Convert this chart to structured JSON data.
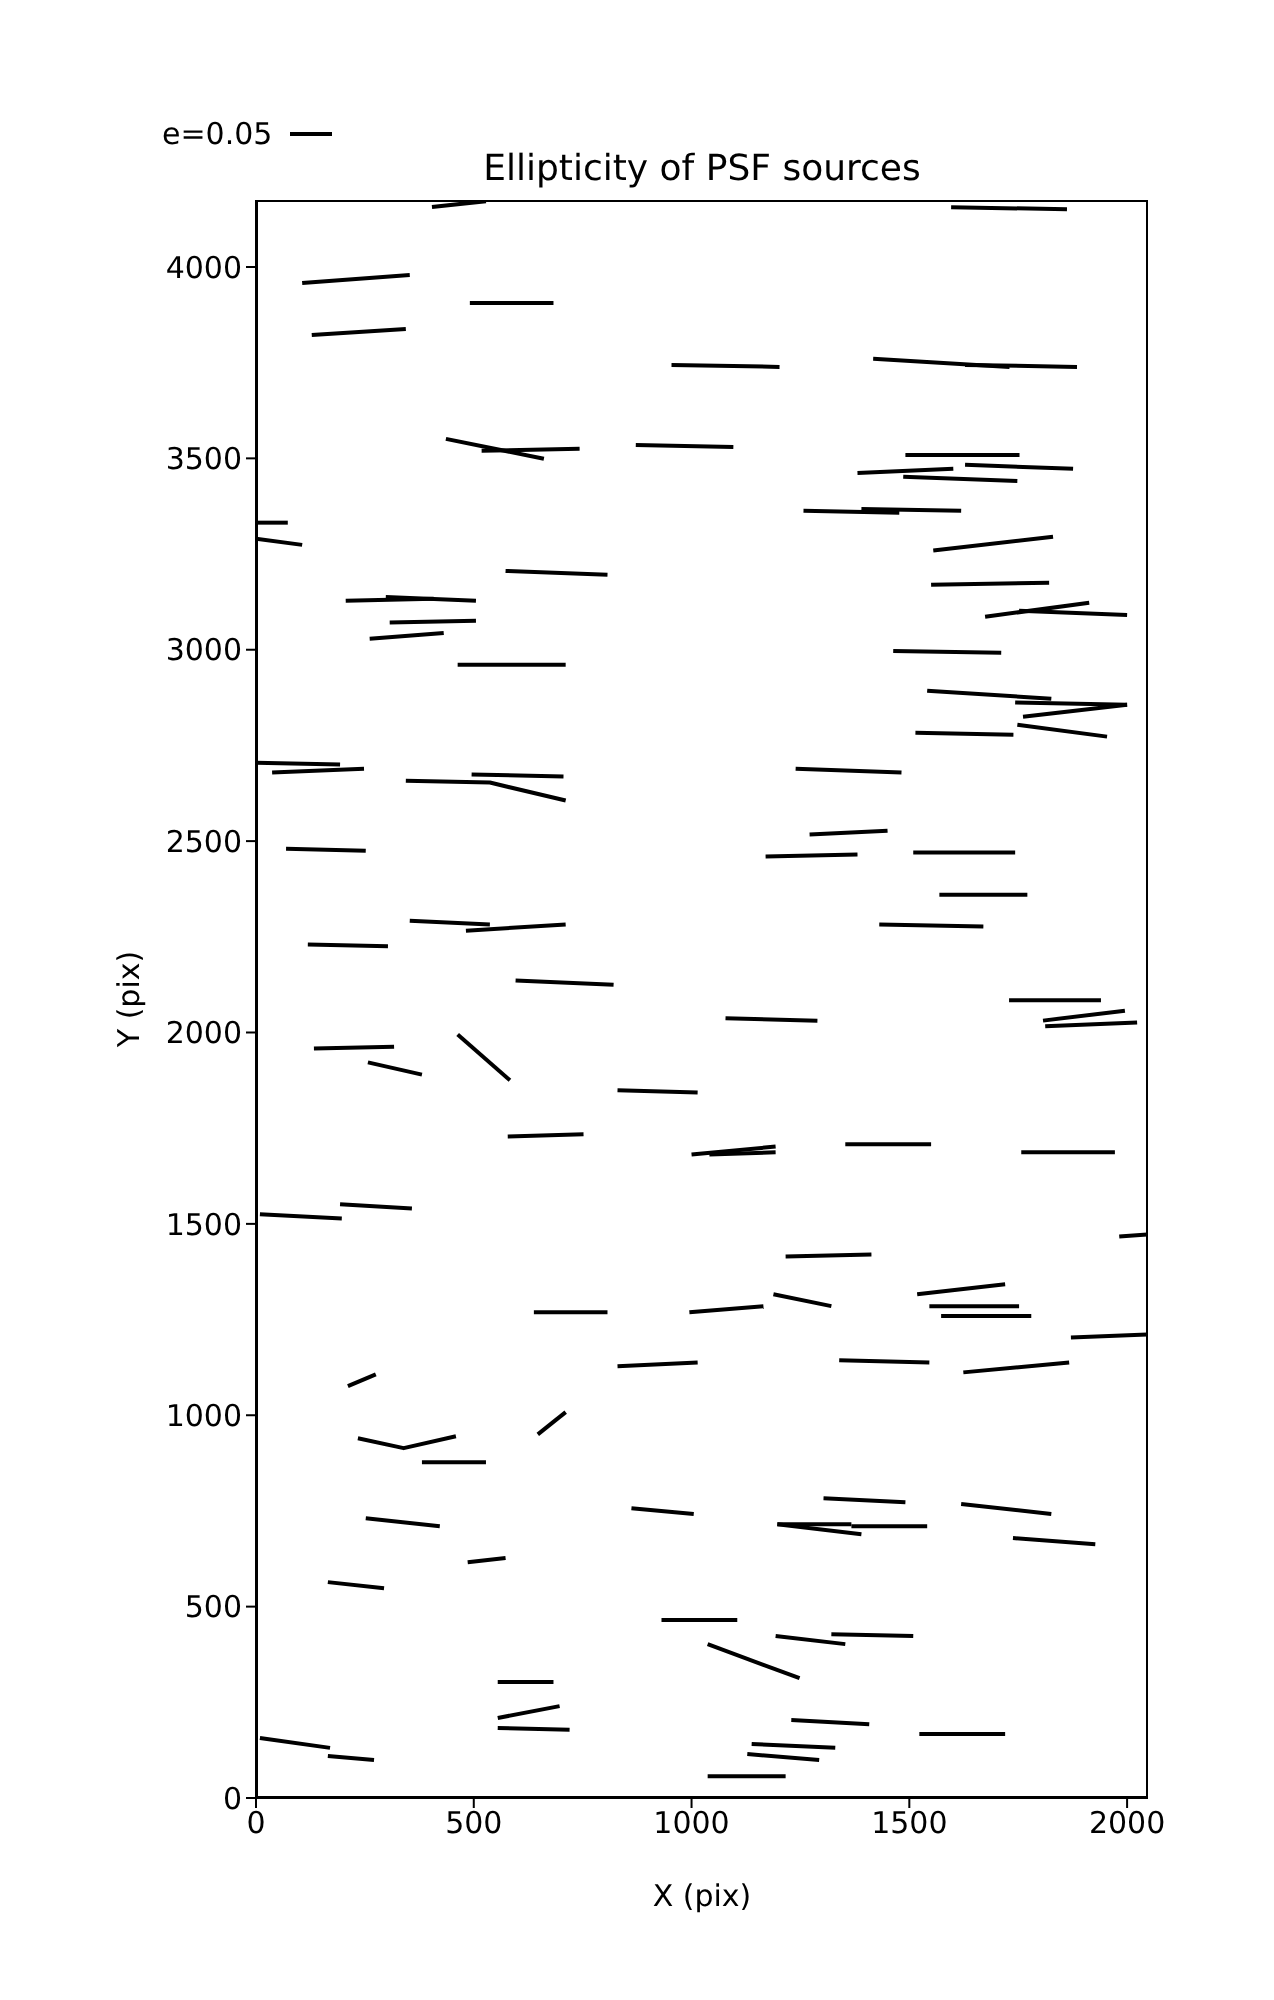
{
  "chart_data": {
    "type": "line",
    "title": "Ellipticity of PSF sources",
    "xlabel": "X (pix)",
    "ylabel": "Y (pix)",
    "annotations": [
      "e=0.05"
    ],
    "xlim": [
      0,
      2048
    ],
    "ylim": [
      0,
      4175
    ],
    "xticks": [
      0,
      500,
      1000,
      1500,
      2000
    ],
    "yticks": [
      0,
      500,
      1000,
      1500,
      2000,
      2500,
      3000,
      3500,
      4000
    ],
    "grid": false,
    "marker": "none",
    "line_style": "solid",
    "series": [
      {
        "color": "#000000",
        "x": [
          404,
          528
        ],
        "values": [
          4157,
          4172
        ]
      },
      {
        "color": "#000000",
        "x": [
          1596,
          1862
        ],
        "values": [
          4156,
          4151
        ]
      },
      {
        "color": "#000000",
        "x": [
          106,
          353
        ],
        "values": [
          3958,
          3979
        ]
      },
      {
        "color": "#000000",
        "x": [
          128,
          344
        ],
        "values": [
          3822,
          3838
        ]
      },
      {
        "color": "#000000",
        "x": [
          491,
          683
        ],
        "values": [
          3906,
          3906
        ]
      },
      {
        "color": "#000000",
        "x": [
          954,
          1202
        ],
        "values": [
          3744,
          3739
        ]
      },
      {
        "color": "#000000",
        "x": [
          1417,
          1730
        ],
        "values": [
          3760,
          3739
        ]
      },
      {
        "color": "#000000",
        "x": [
          1628,
          1885
        ],
        "values": [
          3744,
          3739
        ]
      },
      {
        "color": "#000000",
        "x": [
          436,
          661
        ],
        "values": [
          3551,
          3499
        ]
      },
      {
        "color": "#000000",
        "x": [
          518,
          743
        ],
        "values": [
          3520,
          3525
        ]
      },
      {
        "color": "#000000",
        "x": [
          872,
          1096
        ],
        "values": [
          3535,
          3530
        ]
      },
      {
        "color": "#000000",
        "x": [
          1491,
          1753
        ],
        "values": [
          3509,
          3509
        ]
      },
      {
        "color": "#000000",
        "x": [
          1628,
          1876
        ],
        "values": [
          3483,
          3473
        ]
      },
      {
        "color": "#000000",
        "x": [
          1381,
          1601
        ],
        "values": [
          3462,
          3473
        ]
      },
      {
        "color": "#000000",
        "x": [
          1486,
          1748
        ],
        "values": [
          3452,
          3441
        ]
      },
      {
        "color": "#000000",
        "x": [
          1257,
          1477
        ],
        "values": [
          3363,
          3358
        ]
      },
      {
        "color": "#000000",
        "x": [
          1390,
          1619
        ],
        "values": [
          3368,
          3363
        ]
      },
      {
        "color": "#000000",
        "x": [
          0,
          73
        ],
        "values": [
          3332,
          3332
        ]
      },
      {
        "color": "#000000",
        "x": [
          0,
          106
        ],
        "values": [
          3290,
          3274
        ]
      },
      {
        "color": "#000000",
        "x": [
          1555,
          1830
        ],
        "values": [
          3259,
          3295
        ]
      },
      {
        "color": "#000000",
        "x": [
          573,
          807
        ],
        "values": [
          3206,
          3196
        ]
      },
      {
        "color": "#000000",
        "x": [
          1550,
          1821
        ],
        "values": [
          3170,
          3175
        ]
      },
      {
        "color": "#000000",
        "x": [
          206,
          408
        ],
        "values": [
          3128,
          3133
        ]
      },
      {
        "color": "#000000",
        "x": [
          298,
          505
        ],
        "values": [
          3138,
          3128
        ]
      },
      {
        "color": "#000000",
        "x": [
          307,
          505
        ],
        "values": [
          3071,
          3076
        ]
      },
      {
        "color": "#000000",
        "x": [
          261,
          431
        ],
        "values": [
          3029,
          3044
        ]
      },
      {
        "color": "#000000",
        "x": [
          1674,
          1913
        ],
        "values": [
          3086,
          3123
        ]
      },
      {
        "color": "#000000",
        "x": [
          1752,
          2000
        ],
        "values": [
          3102,
          3091
        ]
      },
      {
        "color": "#000000",
        "x": [
          463,
          711
        ],
        "values": [
          2961,
          2961
        ]
      },
      {
        "color": "#000000",
        "x": [
          1463,
          1711
        ],
        "values": [
          2997,
          2992
        ]
      },
      {
        "color": "#000000",
        "x": [
          1541,
          1826
        ],
        "values": [
          2893,
          2872
        ]
      },
      {
        "color": "#000000",
        "x": [
          1743,
          2000
        ],
        "values": [
          2862,
          2856
        ]
      },
      {
        "color": "#000000",
        "x": [
          1761,
          2000
        ],
        "values": [
          2825,
          2856
        ]
      },
      {
        "color": "#000000",
        "x": [
          1514,
          1739
        ],
        "values": [
          2783,
          2778
        ]
      },
      {
        "color": "#000000",
        "x": [
          1748,
          1954
        ],
        "values": [
          2804,
          2773
        ]
      },
      {
        "color": "#000000",
        "x": [
          0,
          193
        ],
        "values": [
          2705,
          2700
        ]
      },
      {
        "color": "#000000",
        "x": [
          37,
          248
        ],
        "values": [
          2679,
          2689
        ]
      },
      {
        "color": "#000000",
        "x": [
          344,
          537,
          711
        ],
        "values": [
          2658,
          2653,
          2606
        ]
      },
      {
        "color": "#000000",
        "x": [
          495,
          706
        ],
        "values": [
          2674,
          2669
        ]
      },
      {
        "color": "#000000",
        "x": [
          1239,
          1482
        ],
        "values": [
          2689,
          2679
        ]
      },
      {
        "color": "#000000",
        "x": [
          1271,
          1450
        ],
        "values": [
          2517,
          2527
        ]
      },
      {
        "color": "#000000",
        "x": [
          69,
          252
        ],
        "values": [
          2480,
          2475
        ]
      },
      {
        "color": "#000000",
        "x": [
          1170,
          1381
        ],
        "values": [
          2460,
          2465
        ]
      },
      {
        "color": "#000000",
        "x": [
          1509,
          1743
        ],
        "values": [
          2470,
          2470
        ]
      },
      {
        "color": "#000000",
        "x": [
          1569,
          1771
        ],
        "values": [
          2360,
          2360
        ]
      },
      {
        "color": "#000000",
        "x": [
          353,
          537
        ],
        "values": [
          2292,
          2282
        ]
      },
      {
        "color": "#000000",
        "x": [
          482,
          711
        ],
        "values": [
          2266,
          2282
        ]
      },
      {
        "color": "#000000",
        "x": [
          119,
          303
        ],
        "values": [
          2230,
          2225
        ]
      },
      {
        "color": "#000000",
        "x": [
          1431,
          1670
        ],
        "values": [
          2282,
          2277
        ]
      },
      {
        "color": "#000000",
        "x": [
          596,
          821
        ],
        "values": [
          2136,
          2125
        ]
      },
      {
        "color": "#000000",
        "x": [
          1729,
          1940
        ],
        "values": [
          2084,
          2084
        ]
      },
      {
        "color": "#000000",
        "x": [
          1078,
          1289
        ],
        "values": [
          2037,
          2031
        ]
      },
      {
        "color": "#000000",
        "x": [
          1807,
          1995
        ],
        "values": [
          2031,
          2057
        ]
      },
      {
        "color": "#000000",
        "x": [
          1812,
          2023
        ],
        "values": [
          2016,
          2026
        ]
      },
      {
        "color": "#000000",
        "x": [
          133,
          317
        ],
        "values": [
          1958,
          1963
        ]
      },
      {
        "color": "#000000",
        "x": [
          257,
          381
        ],
        "values": [
          1922,
          1890
        ]
      },
      {
        "color": "#000000",
        "x": [
          463,
          583
        ],
        "values": [
          1995,
          1875
        ]
      },
      {
        "color": "#000000",
        "x": [
          830,
          1014
        ],
        "values": [
          1849,
          1843
        ]
      },
      {
        "color": "#000000",
        "x": [
          578,
          752
        ],
        "values": [
          1728,
          1734
        ]
      },
      {
        "color": "#000000",
        "x": [
          1000,
          1193
        ],
        "values": [
          1681,
          1702
        ]
      },
      {
        "color": "#000000",
        "x": [
          1041,
          1193
        ],
        "values": [
          1681,
          1687
        ]
      },
      {
        "color": "#000000",
        "x": [
          1353,
          1550
        ],
        "values": [
          1708,
          1708
        ]
      },
      {
        "color": "#000000",
        "x": [
          1757,
          1972
        ],
        "values": [
          1687,
          1687
        ]
      },
      {
        "color": "#000000",
        "x": [
          9,
          197
        ],
        "values": [
          1525,
          1514
        ]
      },
      {
        "color": "#000000",
        "x": [
          193,
          358
        ],
        "values": [
          1551,
          1540
        ]
      },
      {
        "color": "#000000",
        "x": [
          1982,
          2046
        ],
        "values": [
          1467,
          1472
        ]
      },
      {
        "color": "#000000",
        "x": [
          1216,
          1413
        ],
        "values": [
          1415,
          1420
        ]
      },
      {
        "color": "#000000",
        "x": [
          638,
          807
        ],
        "values": [
          1269,
          1269
        ]
      },
      {
        "color": "#000000",
        "x": [
          995,
          1165
        ],
        "values": [
          1269,
          1285
        ]
      },
      {
        "color": "#000000",
        "x": [
          1188,
          1321
        ],
        "values": [
          1316,
          1285
        ]
      },
      {
        "color": "#000000",
        "x": [
          1518,
          1720
        ],
        "values": [
          1316,
          1342
        ]
      },
      {
        "color": "#000000",
        "x": [
          1546,
          1752
        ],
        "values": [
          1285,
          1285
        ]
      },
      {
        "color": "#000000",
        "x": [
          1573,
          1780
        ],
        "values": [
          1259,
          1259
        ]
      },
      {
        "color": "#000000",
        "x": [
          1871,
          2046
        ],
        "values": [
          1203,
          1211
        ]
      },
      {
        "color": "#000000",
        "x": [
          830,
          1014
        ],
        "values": [
          1128,
          1138
        ]
      },
      {
        "color": "#000000",
        "x": [
          1339,
          1546
        ],
        "values": [
          1144,
          1138
        ]
      },
      {
        "color": "#000000",
        "x": [
          1624,
          1867
        ],
        "values": [
          1112,
          1138
        ]
      },
      {
        "color": "#000000",
        "x": [
          211,
          275
        ],
        "values": [
          1076,
          1107
        ]
      },
      {
        "color": "#000000",
        "x": [
          647,
          711
        ],
        "values": [
          950,
          1008
        ]
      },
      {
        "color": "#000000",
        "x": [
          234,
          339,
          459
        ],
        "values": [
          940,
          914,
          945
        ]
      },
      {
        "color": "#000000",
        "x": [
          381,
          528
        ],
        "values": [
          877,
          877
        ]
      },
      {
        "color": "#000000",
        "x": [
          1303,
          1491
        ],
        "values": [
          783,
          773
        ]
      },
      {
        "color": "#000000",
        "x": [
          1619,
          1826
        ],
        "values": [
          768,
          742
        ]
      },
      {
        "color": "#000000",
        "x": [
          252,
          422
        ],
        "values": [
          731,
          710
        ]
      },
      {
        "color": "#000000",
        "x": [
          862,
          1005
        ],
        "values": [
          757,
          742
        ]
      },
      {
        "color": "#000000",
        "x": [
          1197,
          1367
        ],
        "values": [
          715,
          715
        ]
      },
      {
        "color": "#000000",
        "x": [
          1197,
          1390
        ],
        "values": [
          715,
          689
        ]
      },
      {
        "color": "#000000",
        "x": [
          1367,
          1541
        ],
        "values": [
          710,
          710
        ]
      },
      {
        "color": "#000000",
        "x": [
          1738,
          1927
        ],
        "values": [
          679,
          663
        ]
      },
      {
        "color": "#000000",
        "x": [
          486,
          573
        ],
        "values": [
          616,
          627
        ]
      },
      {
        "color": "#000000",
        "x": [
          165,
          294
        ],
        "values": [
          564,
          548
        ]
      },
      {
        "color": "#000000",
        "x": [
          931,
          1105
        ],
        "values": [
          465,
          465
        ]
      },
      {
        "color": "#000000",
        "x": [
          1193,
          1353
        ],
        "values": [
          423,
          402
        ]
      },
      {
        "color": "#000000",
        "x": [
          1321,
          1509
        ],
        "values": [
          428,
          423
        ]
      },
      {
        "color": "#000000",
        "x": [
          1037,
          1248
        ],
        "values": [
          402,
          313
        ]
      },
      {
        "color": "#000000",
        "x": [
          555,
          683
        ],
        "values": [
          303,
          303
        ]
      },
      {
        "color": "#000000",
        "x": [
          555,
          697
        ],
        "values": [
          209,
          240
        ]
      },
      {
        "color": "#000000",
        "x": [
          555,
          720
        ],
        "values": [
          183,
          178
        ]
      },
      {
        "color": "#000000",
        "x": [
          1229,
          1408
        ],
        "values": [
          204,
          193
        ]
      },
      {
        "color": "#000000",
        "x": [
          1523,
          1720
        ],
        "values": [
          167,
          167
        ]
      },
      {
        "color": "#000000",
        "x": [
          1138,
          1330
        ],
        "values": [
          141,
          131
        ]
      },
      {
        "color": "#000000",
        "x": [
          1128,
          1293
        ],
        "values": [
          115,
          99
        ]
      },
      {
        "color": "#000000",
        "x": [
          1037,
          1216
        ],
        "values": [
          57,
          57
        ]
      },
      {
        "color": "#000000",
        "x": [
          9,
          170
        ],
        "values": [
          157,
          131
        ]
      },
      {
        "color": "#000000",
        "x": [
          165,
          271
        ],
        "values": [
          110,
          99
        ]
      }
    ]
  }
}
